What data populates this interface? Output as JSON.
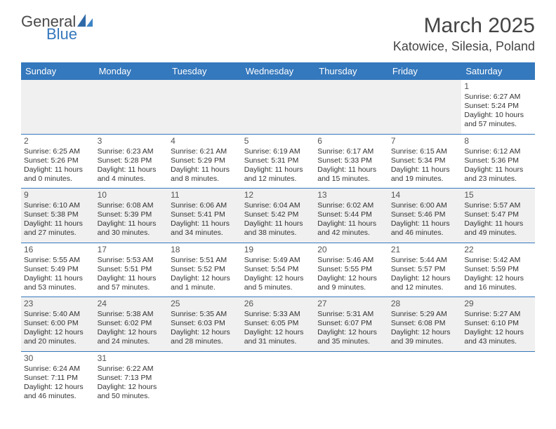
{
  "logo": {
    "part1": "General",
    "part2": "Blue"
  },
  "title": "March 2025",
  "location": "Katowice, Silesia, Poland",
  "colors": {
    "header_bg": "#3478bd",
    "header_fg": "#ffffff",
    "alt_row_bg": "#f0f0f0",
    "border": "#3478bd",
    "text": "#333333"
  },
  "daynames": [
    "Sunday",
    "Monday",
    "Tuesday",
    "Wednesday",
    "Thursday",
    "Friday",
    "Saturday"
  ],
  "weeks": [
    [
      null,
      null,
      null,
      null,
      null,
      null,
      {
        "n": "1",
        "sr": "Sunrise: 6:27 AM",
        "ss": "Sunset: 5:24 PM",
        "dl": "Daylight: 10 hours and 57 minutes."
      }
    ],
    [
      {
        "n": "2",
        "sr": "Sunrise: 6:25 AM",
        "ss": "Sunset: 5:26 PM",
        "dl": "Daylight: 11 hours and 0 minutes."
      },
      {
        "n": "3",
        "sr": "Sunrise: 6:23 AM",
        "ss": "Sunset: 5:28 PM",
        "dl": "Daylight: 11 hours and 4 minutes."
      },
      {
        "n": "4",
        "sr": "Sunrise: 6:21 AM",
        "ss": "Sunset: 5:29 PM",
        "dl": "Daylight: 11 hours and 8 minutes."
      },
      {
        "n": "5",
        "sr": "Sunrise: 6:19 AM",
        "ss": "Sunset: 5:31 PM",
        "dl": "Daylight: 11 hours and 12 minutes."
      },
      {
        "n": "6",
        "sr": "Sunrise: 6:17 AM",
        "ss": "Sunset: 5:33 PM",
        "dl": "Daylight: 11 hours and 15 minutes."
      },
      {
        "n": "7",
        "sr": "Sunrise: 6:15 AM",
        "ss": "Sunset: 5:34 PM",
        "dl": "Daylight: 11 hours and 19 minutes."
      },
      {
        "n": "8",
        "sr": "Sunrise: 6:12 AM",
        "ss": "Sunset: 5:36 PM",
        "dl": "Daylight: 11 hours and 23 minutes."
      }
    ],
    [
      {
        "n": "9",
        "sr": "Sunrise: 6:10 AM",
        "ss": "Sunset: 5:38 PM",
        "dl": "Daylight: 11 hours and 27 minutes."
      },
      {
        "n": "10",
        "sr": "Sunrise: 6:08 AM",
        "ss": "Sunset: 5:39 PM",
        "dl": "Daylight: 11 hours and 30 minutes."
      },
      {
        "n": "11",
        "sr": "Sunrise: 6:06 AM",
        "ss": "Sunset: 5:41 PM",
        "dl": "Daylight: 11 hours and 34 minutes."
      },
      {
        "n": "12",
        "sr": "Sunrise: 6:04 AM",
        "ss": "Sunset: 5:42 PM",
        "dl": "Daylight: 11 hours and 38 minutes."
      },
      {
        "n": "13",
        "sr": "Sunrise: 6:02 AM",
        "ss": "Sunset: 5:44 PM",
        "dl": "Daylight: 11 hours and 42 minutes."
      },
      {
        "n": "14",
        "sr": "Sunrise: 6:00 AM",
        "ss": "Sunset: 5:46 PM",
        "dl": "Daylight: 11 hours and 46 minutes."
      },
      {
        "n": "15",
        "sr": "Sunrise: 5:57 AM",
        "ss": "Sunset: 5:47 PM",
        "dl": "Daylight: 11 hours and 49 minutes."
      }
    ],
    [
      {
        "n": "16",
        "sr": "Sunrise: 5:55 AM",
        "ss": "Sunset: 5:49 PM",
        "dl": "Daylight: 11 hours and 53 minutes."
      },
      {
        "n": "17",
        "sr": "Sunrise: 5:53 AM",
        "ss": "Sunset: 5:51 PM",
        "dl": "Daylight: 11 hours and 57 minutes."
      },
      {
        "n": "18",
        "sr": "Sunrise: 5:51 AM",
        "ss": "Sunset: 5:52 PM",
        "dl": "Daylight: 12 hours and 1 minute."
      },
      {
        "n": "19",
        "sr": "Sunrise: 5:49 AM",
        "ss": "Sunset: 5:54 PM",
        "dl": "Daylight: 12 hours and 5 minutes."
      },
      {
        "n": "20",
        "sr": "Sunrise: 5:46 AM",
        "ss": "Sunset: 5:55 PM",
        "dl": "Daylight: 12 hours and 9 minutes."
      },
      {
        "n": "21",
        "sr": "Sunrise: 5:44 AM",
        "ss": "Sunset: 5:57 PM",
        "dl": "Daylight: 12 hours and 12 minutes."
      },
      {
        "n": "22",
        "sr": "Sunrise: 5:42 AM",
        "ss": "Sunset: 5:59 PM",
        "dl": "Daylight: 12 hours and 16 minutes."
      }
    ],
    [
      {
        "n": "23",
        "sr": "Sunrise: 5:40 AM",
        "ss": "Sunset: 6:00 PM",
        "dl": "Daylight: 12 hours and 20 minutes."
      },
      {
        "n": "24",
        "sr": "Sunrise: 5:38 AM",
        "ss": "Sunset: 6:02 PM",
        "dl": "Daylight: 12 hours and 24 minutes."
      },
      {
        "n": "25",
        "sr": "Sunrise: 5:35 AM",
        "ss": "Sunset: 6:03 PM",
        "dl": "Daylight: 12 hours and 28 minutes."
      },
      {
        "n": "26",
        "sr": "Sunrise: 5:33 AM",
        "ss": "Sunset: 6:05 PM",
        "dl": "Daylight: 12 hours and 31 minutes."
      },
      {
        "n": "27",
        "sr": "Sunrise: 5:31 AM",
        "ss": "Sunset: 6:07 PM",
        "dl": "Daylight: 12 hours and 35 minutes."
      },
      {
        "n": "28",
        "sr": "Sunrise: 5:29 AM",
        "ss": "Sunset: 6:08 PM",
        "dl": "Daylight: 12 hours and 39 minutes."
      },
      {
        "n": "29",
        "sr": "Sunrise: 5:27 AM",
        "ss": "Sunset: 6:10 PM",
        "dl": "Daylight: 12 hours and 43 minutes."
      }
    ],
    [
      {
        "n": "30",
        "sr": "Sunrise: 6:24 AM",
        "ss": "Sunset: 7:11 PM",
        "dl": "Daylight: 12 hours and 46 minutes."
      },
      {
        "n": "31",
        "sr": "Sunrise: 6:22 AM",
        "ss": "Sunset: 7:13 PM",
        "dl": "Daylight: 12 hours and 50 minutes."
      },
      null,
      null,
      null,
      null,
      null
    ]
  ]
}
